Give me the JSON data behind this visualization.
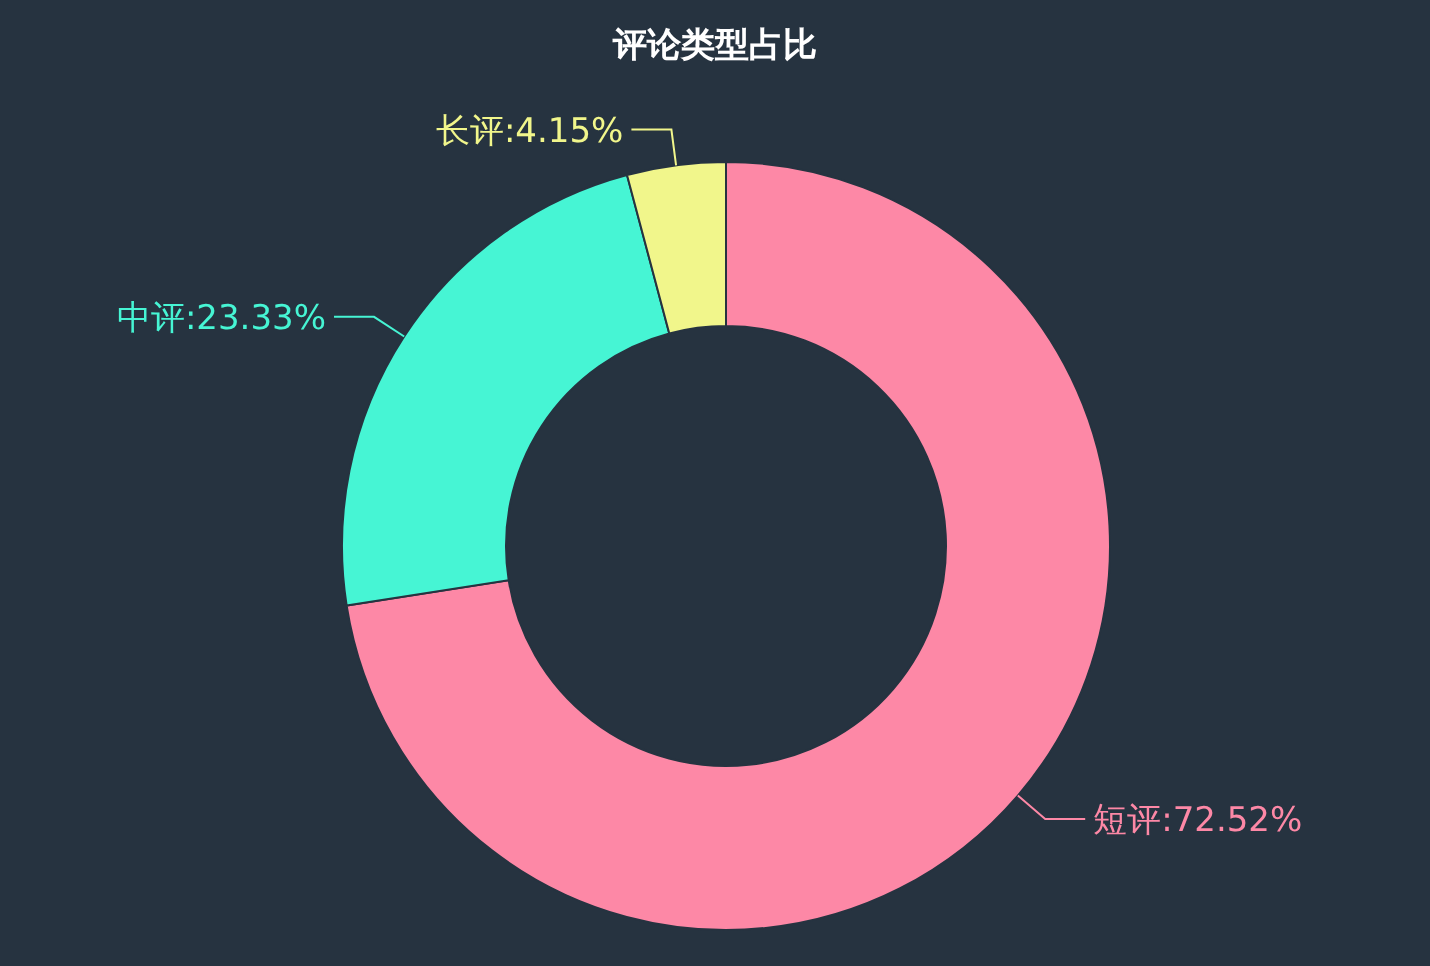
{
  "chart_data": {
    "type": "donut",
    "title": "评论类型占比",
    "categories": [
      "短评",
      "中评",
      "长评"
    ],
    "values": [
      72.52,
      23.33,
      4.15
    ],
    "value_labels": [
      ":72.52%",
      ":23.33%",
      ":4.15%"
    ],
    "colors": [
      "#fd88a6",
      "#46f5d4",
      "#f1f68b"
    ]
  }
}
